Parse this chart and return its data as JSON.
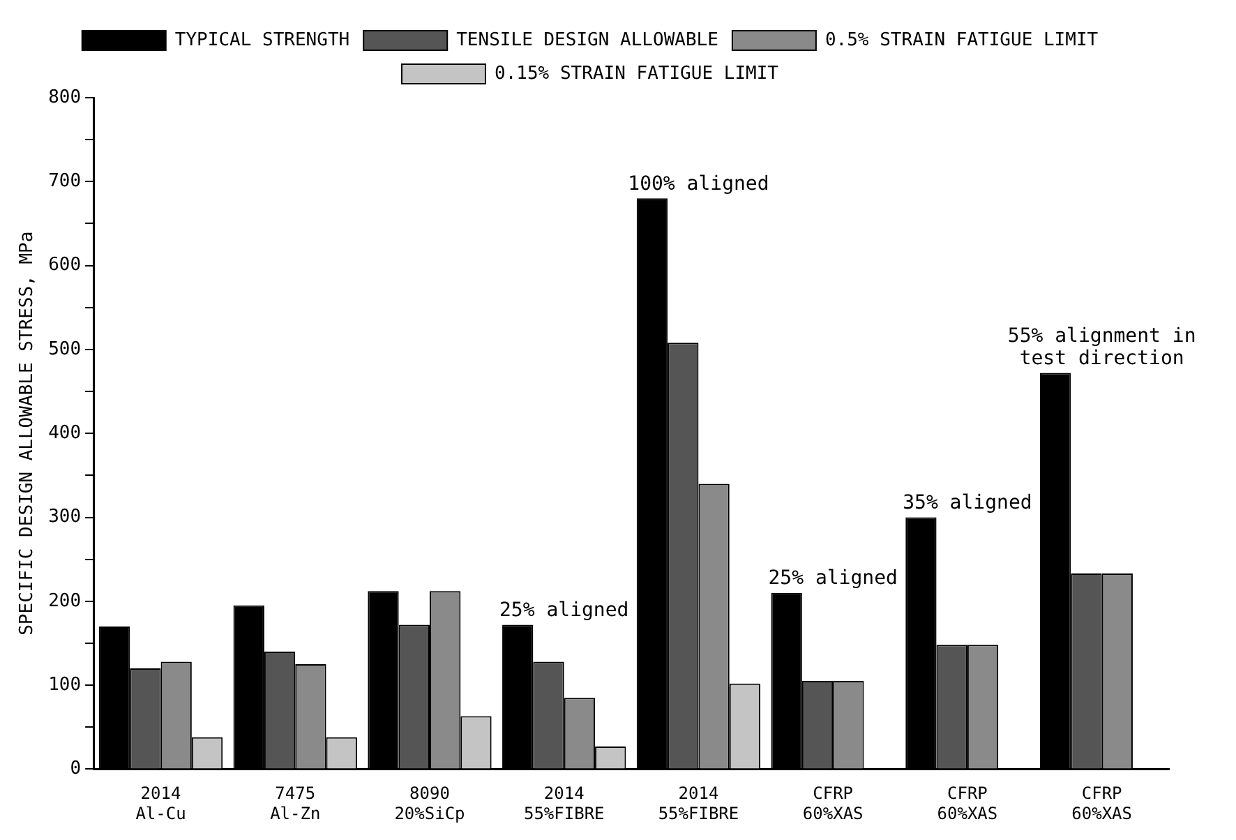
{
  "chart_data": {
    "type": "bar",
    "ylabel": "SPECIFIC DESIGN ALLOWABLE STRESS, MPa",
    "categories": [
      "2014\nAl-Cu",
      "7475\nAl-Zn",
      "8090\n20%SiCp",
      "2014\n55%FIBRE",
      "2014\n55%FIBRE",
      "CFRP\n60%XAS",
      "CFRP\n60%XAS",
      "CFRP\n60%XAS"
    ],
    "series": [
      {
        "name": "TYPICAL STRENGTH",
        "color": "#000000",
        "values": [
          170,
          195,
          212,
          172,
          680,
          210,
          300,
          472
        ]
      },
      {
        "name": "TENSILE DESIGN ALLOWABLE",
        "color": "#555555",
        "values": [
          120,
          140,
          172,
          128,
          508,
          105,
          148,
          233
        ]
      },
      {
        "name": "0.5% STRAIN FATIGUE LIMIT",
        "color": "#8a8a8a",
        "values": [
          128,
          125,
          212,
          85,
          340,
          105,
          148,
          233
        ]
      },
      {
        "name": "0.15% STRAIN FATIGUE LIMIT",
        "color": "#c4c4c4",
        "values": [
          38,
          38,
          63,
          27,
          102,
          null,
          null,
          null
        ]
      }
    ],
    "ylim": [
      0,
      800
    ],
    "yticks": [
      0,
      {
        "value": 50,
        "label": null
      },
      100,
      {
        "value": 150,
        "label": null
      },
      200,
      {
        "value": 250,
        "label": null
      },
      300,
      {
        "value": 350,
        "label": null
      },
      400,
      {
        "value": 450,
        "label": null
      },
      500,
      {
        "value": 550,
        "label": null
      },
      600,
      {
        "value": 650,
        "label": null
      },
      700,
      {
        "value": 750,
        "label": null
      },
      800
    ],
    "legend": "top",
    "annotations": [
      "25% aligned",
      "100% aligned",
      "25% aligned",
      "35% aligned",
      "55% alignment in\ntest direction"
    ]
  }
}
